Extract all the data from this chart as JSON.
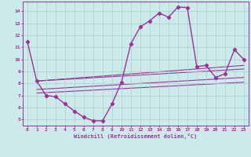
{
  "xlabel": "Windchill (Refroidissement éolien,°C)",
  "xlim": [
    -0.5,
    23.5
  ],
  "ylim": [
    4.5,
    14.8
  ],
  "xticks": [
    0,
    1,
    2,
    3,
    4,
    5,
    6,
    7,
    8,
    9,
    10,
    11,
    12,
    13,
    14,
    15,
    16,
    17,
    18,
    19,
    20,
    21,
    22,
    23
  ],
  "yticks": [
    5,
    6,
    7,
    8,
    9,
    10,
    11,
    12,
    13,
    14
  ],
  "background_color": "#cceaea",
  "grid_color": "#aacccc",
  "line_color": "#993399",
  "series": [
    [
      0,
      11.5
    ],
    [
      1,
      8.2
    ],
    [
      2,
      7.0
    ],
    [
      3,
      6.9
    ],
    [
      4,
      6.3
    ],
    [
      5,
      5.7
    ],
    [
      6,
      5.2
    ],
    [
      7,
      4.9
    ],
    [
      8,
      4.9
    ],
    [
      9,
      6.3
    ],
    [
      10,
      8.1
    ],
    [
      11,
      11.3
    ],
    [
      12,
      12.7
    ],
    [
      13,
      13.2
    ],
    [
      14,
      13.85
    ],
    [
      15,
      13.5
    ],
    [
      16,
      14.35
    ],
    [
      17,
      14.3
    ],
    [
      18,
      9.4
    ],
    [
      19,
      9.5
    ],
    [
      20,
      8.5
    ],
    [
      21,
      8.8
    ],
    [
      22,
      10.8
    ],
    [
      23,
      10.0
    ]
  ],
  "diag_lines": [
    {
      "x": [
        1,
        23
      ],
      "y": [
        8.2,
        9.5
      ]
    },
    {
      "x": [
        1,
        23
      ],
      "y": [
        7.5,
        8.5
      ]
    },
    {
      "x": [
        1,
        23
      ],
      "y": [
        7.2,
        8.1
      ]
    },
    {
      "x": [
        1,
        23
      ],
      "y": [
        8.2,
        9.2
      ]
    }
  ]
}
